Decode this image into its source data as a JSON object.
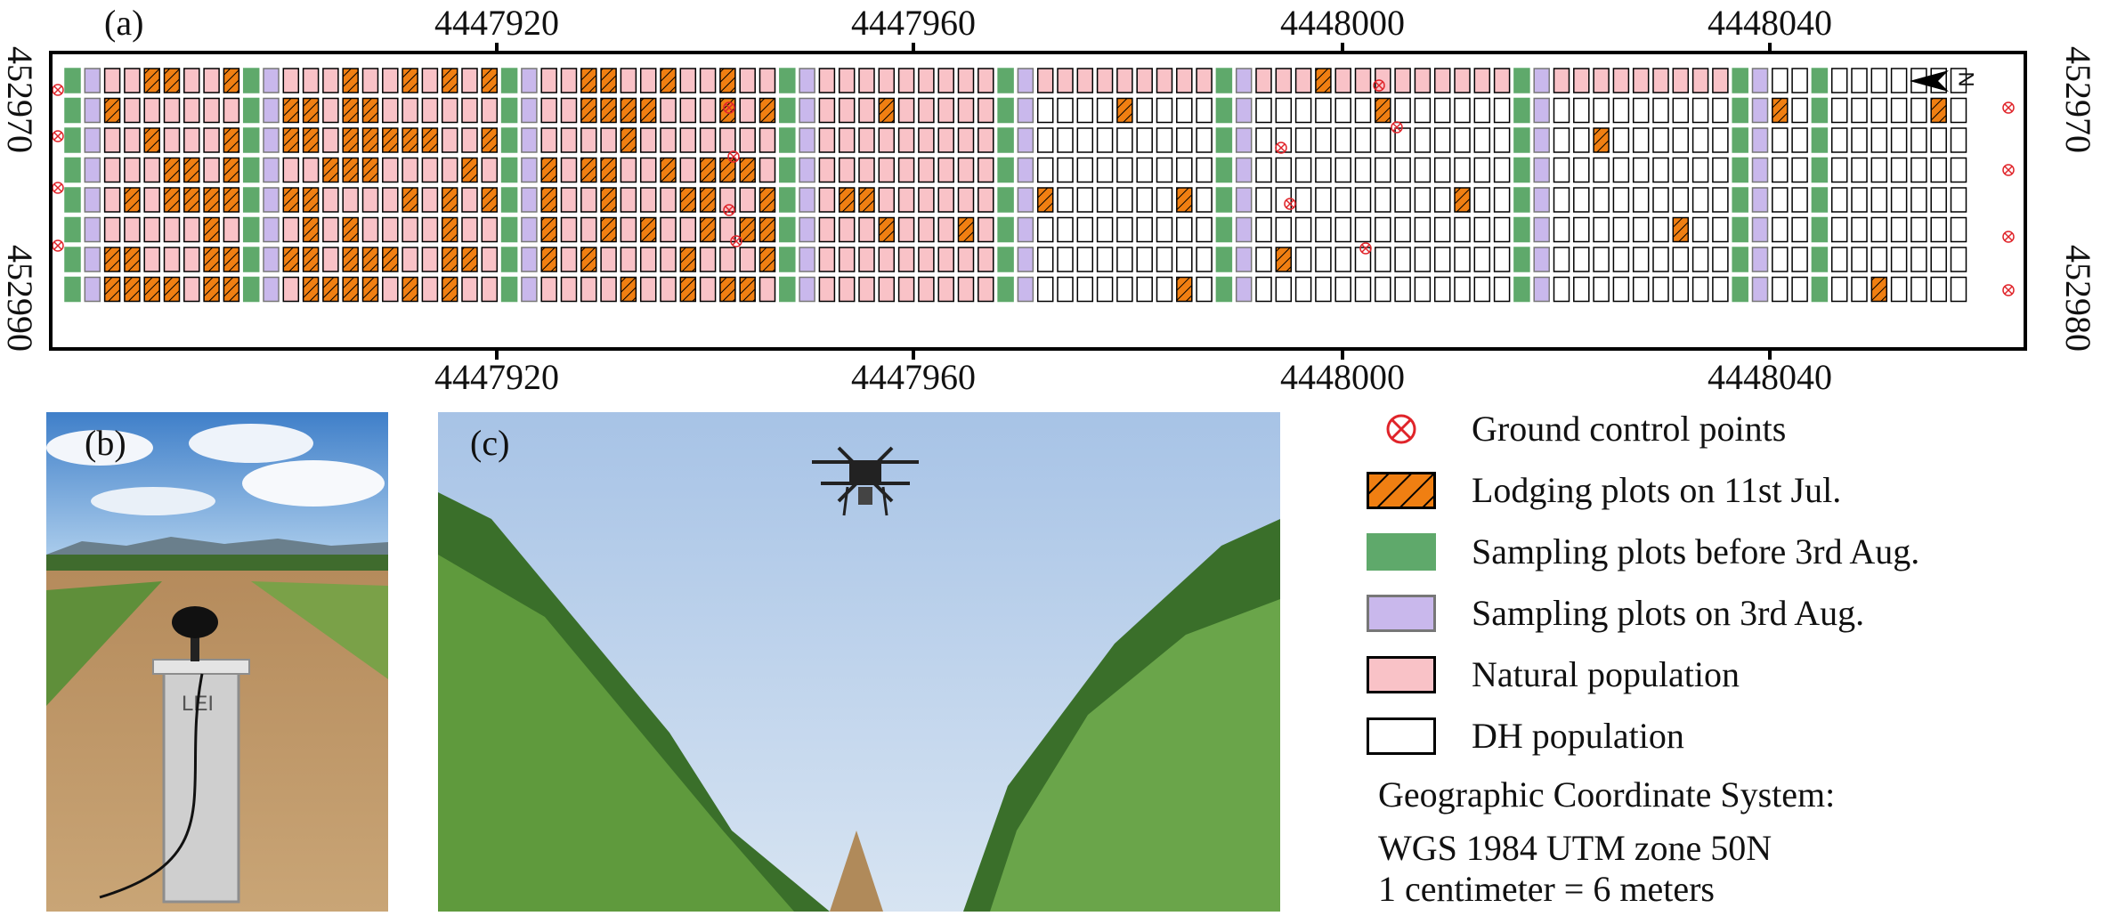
{
  "panels": {
    "a": "(a)",
    "b": "(b)",
    "c": "(c)"
  },
  "map": {
    "x_ticks": [
      "4447920",
      "4447960",
      "4448000",
      "4448040"
    ],
    "y_ticks_left": [
      "452970",
      "452990"
    ],
    "y_ticks_right": [
      "452970",
      "452980"
    ],
    "north_label": "N",
    "colors": {
      "lodging": "#f07f12",
      "sampling_before": "#5fa96b",
      "sampling_on": "#c9b8ec",
      "natural": "#f9c2c7",
      "dh": "#ffffff",
      "gcp": "#e0242a"
    }
  },
  "legend": {
    "items": [
      {
        "key": "gcp",
        "label": "Ground control points",
        "icon": "circled-x-icon"
      },
      {
        "key": "lodging",
        "label": "Lodging plots on 11st Jul.",
        "icon": "hatched-orange-box-icon"
      },
      {
        "key": "sampling_before",
        "label": "Sampling  plots before 3rd Aug.",
        "icon": "green-box-icon"
      },
      {
        "key": "sampling_on",
        "label": "Sampling  plots on 3rd Aug.",
        "icon": "lavender-box-icon"
      },
      {
        "key": "natural",
        "label": "Natural population",
        "icon": "pink-box-icon"
      },
      {
        "key": "dh",
        "label": "DH population",
        "icon": "white-box-icon"
      }
    ],
    "crs_line1": "Geographic Coordinate System:",
    "crs_line2": "WGS 1984 UTM zone 50N",
    "crs_line3": "1 centimeter = 6 meters"
  },
  "photo_b": {
    "marker_text": "LEI"
  }
}
